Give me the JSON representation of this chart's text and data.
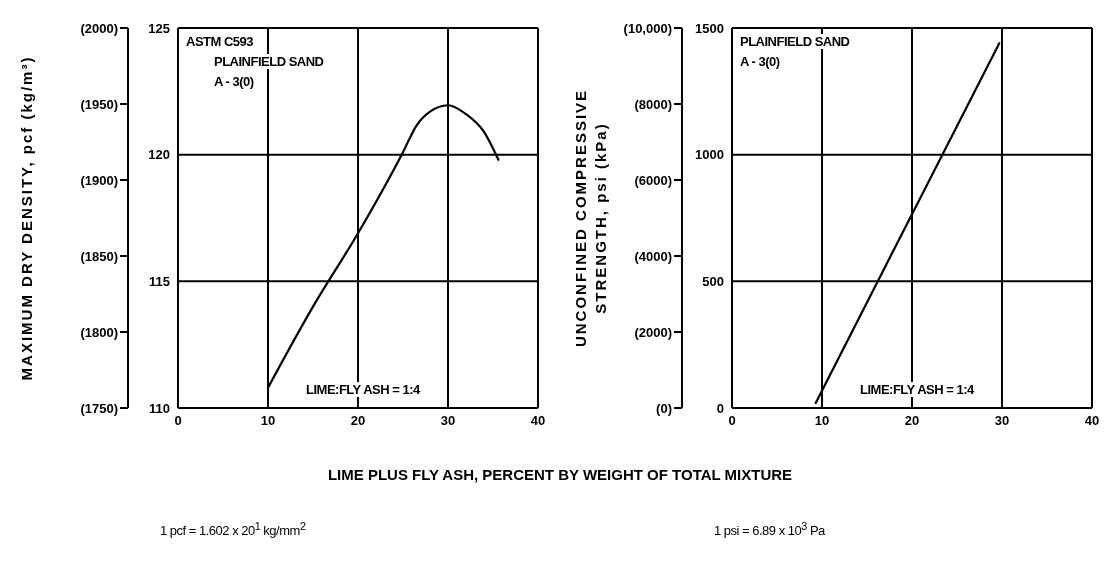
{
  "chart_data": [
    {
      "type": "line",
      "ylabel": "MAXIMUM DRY DENSITY, pcf (kg/m³)",
      "xlabel": "LIME PLUS FLY ASH, PERCENT BY WEIGHT OF TOTAL MIXTURE",
      "x": [
        10,
        15,
        20,
        25,
        26.5,
        28,
        30,
        32,
        34,
        35.6
      ],
      "series": [
        {
          "color": "#000000",
          "axis": "y2",
          "values": [
            110.8,
            114.0,
            116.9,
            120.1,
            121.15,
            121.7,
            121.95,
            121.6,
            120.9,
            119.8
          ]
        }
      ],
      "xlim": [
        0,
        40
      ],
      "xticks": [
        0,
        10,
        20,
        30,
        40
      ],
      "ylim": [
        1750,
        2000
      ],
      "yticks": [
        {
          "value": 1750,
          "label": "(1750)"
        },
        {
          "value": 1800,
          "label": "(1800)"
        },
        {
          "value": 1850,
          "label": "(1850)"
        },
        {
          "value": 1900,
          "label": "(1900)"
        },
        {
          "value": 1950,
          "label": "(1950)"
        },
        {
          "value": 2000,
          "label": "(2000)"
        }
      ],
      "y2lim": [
        110,
        125
      ],
      "y2ticks": [
        110,
        115,
        120,
        125
      ],
      "grid": true,
      "marker": "none",
      "line_style": "solid",
      "annotations": [
        "ASTM C593",
        "PLAINFIELD SAND",
        "A - 3(0)",
        "LIME:FLY ASH = 1:4",
        "1 pcf = 1.602 x 20$^{1}$ kg/mm$^{2}$"
      ]
    },
    {
      "type": "line",
      "ylabel": "UNCONFINED COMPRESSIVE STRENGTH, psi (kPa)",
      "x": [
        9.3,
        20,
        29.7
      ],
      "series": [
        {
          "color": "#000000",
          "axis": "y2",
          "values": [
            20,
            765,
            1440
          ]
        }
      ],
      "xlim": [
        0,
        40
      ],
      "xticks": [
        0,
        10,
        20,
        30,
        40
      ],
      "ylim": [
        0,
        10000
      ],
      "yticks": [
        {
          "value": 0,
          "label": "(0)"
        },
        {
          "value": 2000,
          "label": "(2000)"
        },
        {
          "value": 4000,
          "label": "(4000)"
        },
        {
          "value": 6000,
          "label": "(6000)"
        },
        {
          "value": 8000,
          "label": "(8000)"
        },
        {
          "value": 10000,
          "label": "(10,000)"
        }
      ],
      "y2lim": [
        0,
        1500
      ],
      "y2ticks": [
        0,
        500,
        1000,
        1500
      ],
      "grid": true,
      "marker": "none",
      "line_style": "solid",
      "annotations": [
        "PLAINFIELD SAND",
        "A - 3(0)",
        "LIME:FLY ASH = 1:4",
        "1 psi = 6.89 x 10$^{3}$ Pa"
      ]
    }
  ]
}
